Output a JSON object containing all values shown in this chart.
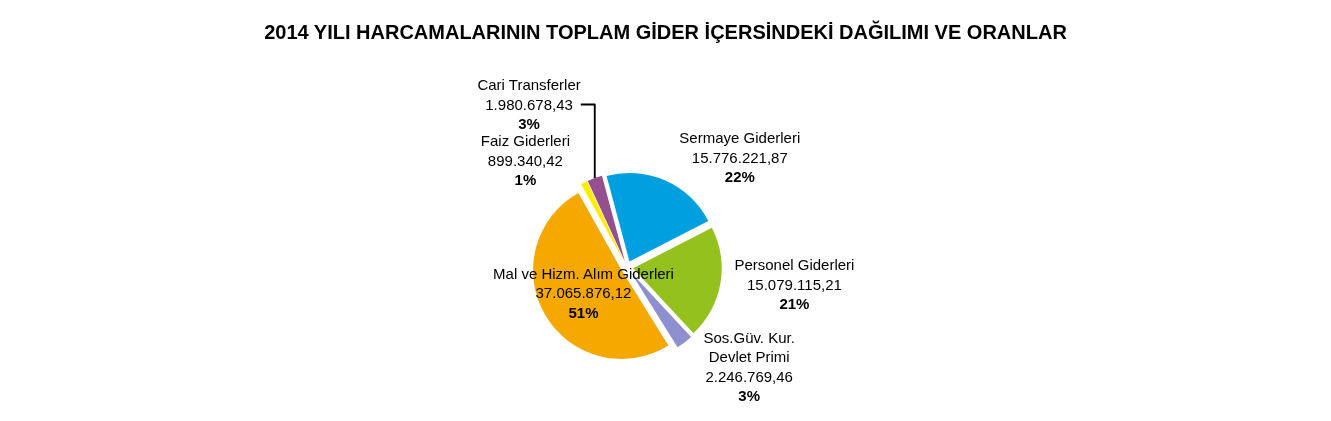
{
  "chart_data": {
    "type": "pie",
    "title": "2014 YILI HARCAMALARININ TOPLAM GİDER İÇERSİNDEKİ DAĞILIMI VE ORANLAR",
    "categories": [
      "Sermaye Giderleri",
      "Personel Giderleri",
      "Sos.Güv. Kur.\nDevlet Primi",
      "Mal ve Hizm. Alım Giderleri",
      "Faiz Giderleri",
      "Cari Transferler"
    ],
    "values": [
      15776221.87,
      15079115.21,
      2246769.46,
      37065876.12,
      899340.42,
      1980678.43
    ],
    "value_labels": [
      "15.776.221,87\n22%",
      "15.079.115,21\n21%",
      "2.246.769,46\n3%",
      "37.065.876,12\n51%",
      "899.340,42\n1%",
      "1.980.678,43\n3%"
    ],
    "colors": [
      "#00a0e0",
      "#95c11f",
      "#8e8fce",
      "#f5a800",
      "#ffed00",
      "#954f8c"
    ],
    "legend": false
  }
}
